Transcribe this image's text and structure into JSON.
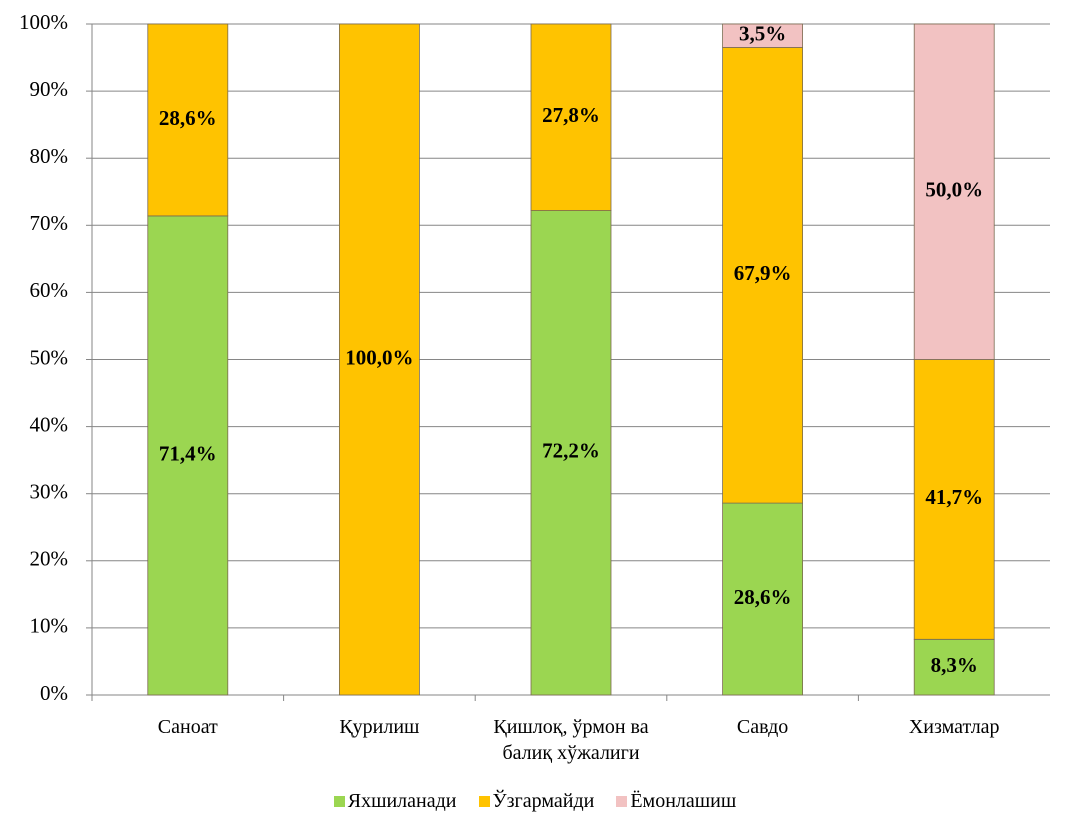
{
  "chart_data": {
    "type": "stacked_bar",
    "categories": [
      "Саноат",
      "Қурилиш",
      "Қишлоқ, ўрмон ва балиқ хўжалиги",
      "Савдо",
      "Хизматлар"
    ],
    "series": [
      {
        "name": "Яхшиланади",
        "color": "#9bd651",
        "values": [
          71.4,
          null,
          72.2,
          28.6,
          8.3
        ],
        "value_labels": [
          "71,4%",
          null,
          "72,2%",
          "28,6%",
          "8,3%"
        ]
      },
      {
        "name": "Ўзгармайди",
        "color": "#ffc300",
        "values": [
          28.6,
          100.0,
          27.8,
          67.9,
          41.7
        ],
        "value_labels": [
          "28,6%",
          "100,0%",
          "27,8%",
          "67,9%",
          "41,7%"
        ]
      },
      {
        "name": "Ёмонлашиш",
        "color": "#f2c2c2",
        "values": [
          null,
          null,
          null,
          3.5,
          50.0
        ],
        "value_labels": [
          null,
          null,
          null,
          "3,5%",
          "50,0%"
        ]
      }
    ],
    "ylim": [
      0,
      100
    ],
    "yticks": [
      {
        "value": 0,
        "label": "0%"
      },
      {
        "value": 10,
        "label": "10%"
      },
      {
        "value": 20,
        "label": "20%"
      },
      {
        "value": 30,
        "label": "30%"
      },
      {
        "value": 40,
        "label": "40%"
      },
      {
        "value": 50,
        "label": "50%"
      },
      {
        "value": 60,
        "label": "60%"
      },
      {
        "value": 70,
        "label": "70%"
      },
      {
        "value": 80,
        "label": "80%"
      },
      {
        "value": 90,
        "label": "90%"
      },
      {
        "value": 100,
        "label": "100%"
      }
    ],
    "grid": true,
    "legend": "bottom"
  }
}
